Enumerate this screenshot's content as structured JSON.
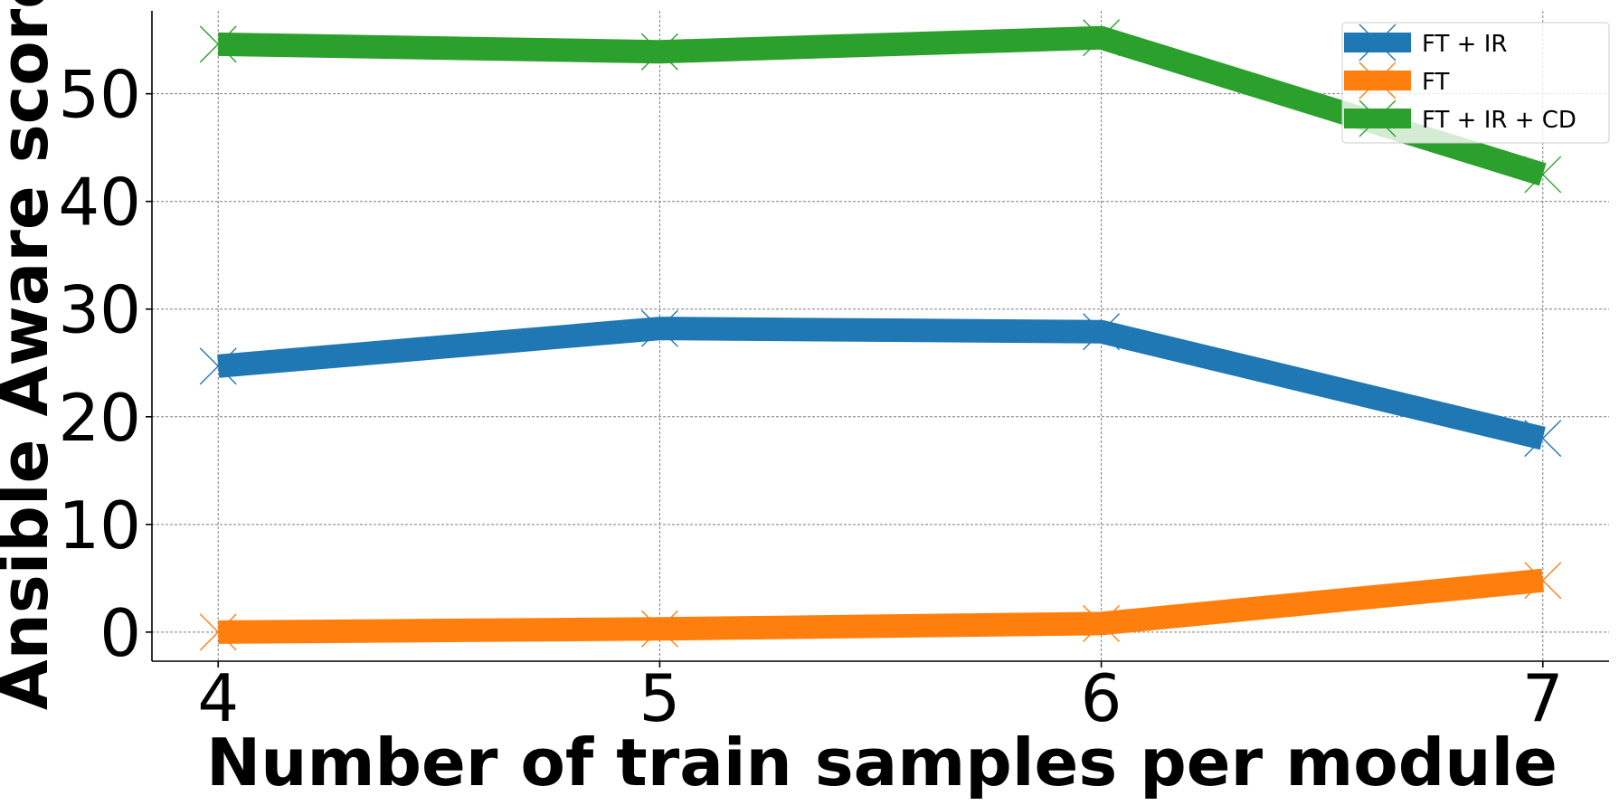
{
  "chart_data": {
    "type": "line",
    "x": [
      4,
      5,
      6,
      7
    ],
    "xticks": [
      "4",
      "5",
      "6",
      "7"
    ],
    "yticks": [
      "0",
      "10",
      "20",
      "30",
      "40",
      "50"
    ],
    "xlabel": "Number of train samples per module",
    "ylabel": "Ansible Aware score",
    "xlim": [
      3.85,
      7.15
    ],
    "ylim": [
      -2.7,
      57.7
    ],
    "grid": true,
    "legend_position": "top-right",
    "series": [
      {
        "name": "FT + IR",
        "values": [
          24.7,
          28.2,
          27.9,
          18.0
        ],
        "color": "#1f77b4"
      },
      {
        "name": "FT",
        "values": [
          0.0,
          0.3,
          0.8,
          4.8
        ],
        "color": "#ff7f0e"
      },
      {
        "name": "FT + IR + CD",
        "values": [
          54.6,
          53.9,
          55.2,
          42.5
        ],
        "color": "#2ca02c"
      }
    ]
  }
}
